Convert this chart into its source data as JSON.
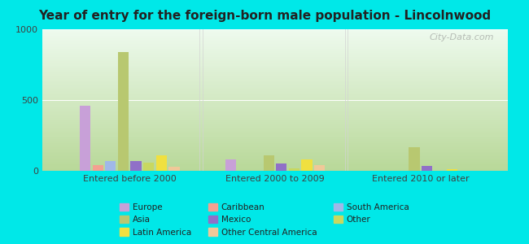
{
  "title": "Year of entry for the foreign-born male population - Lincolnwood",
  "categories": [
    "Entered before 2000",
    "Entered 2000 to 2009",
    "Entered 2010 or later"
  ],
  "series": {
    "Europe": [
      460,
      80,
      0
    ],
    "Caribbean": [
      40,
      0,
      0
    ],
    "South America": [
      70,
      0,
      0
    ],
    "Asia": [
      840,
      110,
      165
    ],
    "Mexico": [
      70,
      50,
      35
    ],
    "Other": [
      60,
      20,
      0
    ],
    "Latin America": [
      110,
      80,
      10
    ],
    "Other Central America": [
      30,
      40,
      0
    ]
  },
  "colors": {
    "Europe": "#c8a0d8",
    "Caribbean": "#f4a090",
    "South America": "#a0b8e8",
    "Asia": "#b8c870",
    "Mexico": "#9070c8",
    "Other": "#c8d860",
    "Latin America": "#f0e040",
    "Other Central America": "#f0c898"
  },
  "ylim": [
    0,
    1000
  ],
  "yticks": [
    0,
    500,
    1000
  ],
  "background_color": "#e8fff8",
  "plot_bg_gradient_top": "#e8ffe8",
  "plot_bg_gradient_bottom": "#f8fff8",
  "outer_bg": "#00e8e8",
  "watermark": "City-Data.com"
}
